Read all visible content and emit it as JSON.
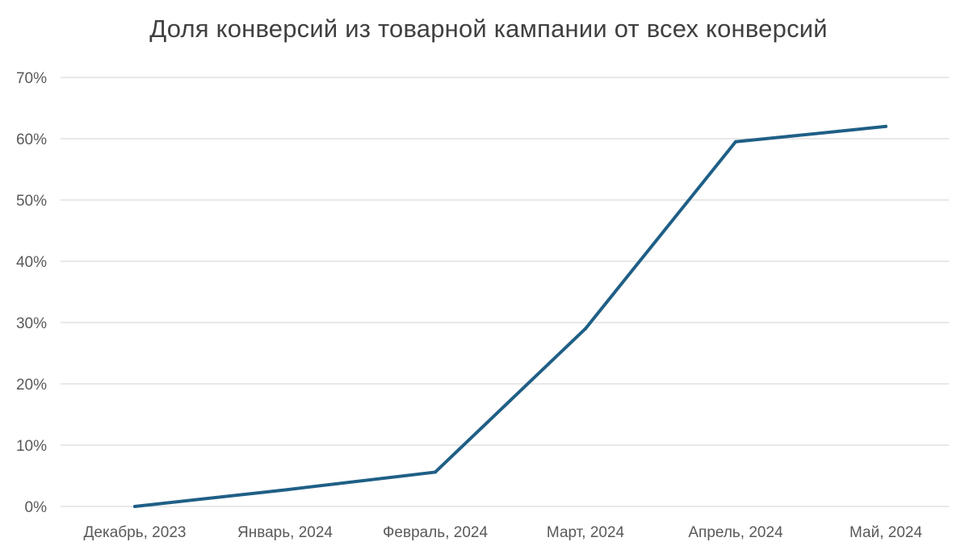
{
  "chart_data": {
    "type": "line",
    "title": "Доля конверсий из товарной кампании от всех конверсий",
    "xlabel": "",
    "ylabel": "",
    "categories": [
      "Декабрь, 2023",
      "Январь, 2024",
      "Февраль, 2024",
      "Март, 2024",
      "Апрель, 2024",
      "Май, 2024"
    ],
    "series": [
      {
        "values": [
          0.0,
          2.7,
          5.6,
          29.0,
          59.5,
          62.0
        ],
        "color": "#1f5f86"
      }
    ],
    "ylim": [
      0,
      70
    ],
    "yticks": [
      0,
      10,
      20,
      30,
      40,
      50,
      60,
      70
    ],
    "ytick_labels": [
      "0%",
      "10%",
      "20%",
      "30%",
      "40%",
      "50%",
      "60%",
      "70%"
    ],
    "grid": true,
    "legend": "none"
  }
}
